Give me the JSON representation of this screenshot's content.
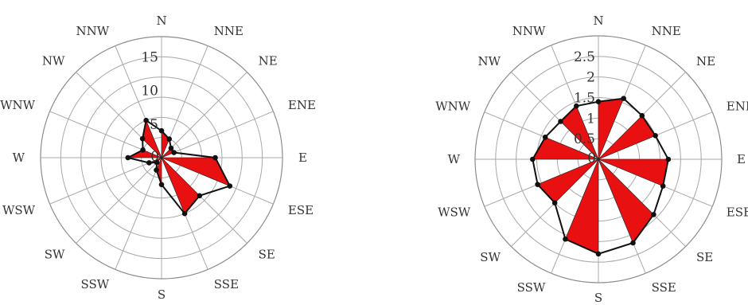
{
  "chart_data": [
    {
      "type": "radar",
      "chart_style": "wind-rose",
      "directions": [
        "N",
        "NNE",
        "NE",
        "ENE",
        "E",
        "ESE",
        "SE",
        "SSE",
        "S",
        "SSW",
        "SW",
        "WSW",
        "W",
        "WNW",
        "NW",
        "NNW"
      ],
      "ticks": [
        0,
        5,
        10,
        15
      ],
      "tick_labels": [
        "0",
        "5",
        "10",
        "15"
      ],
      "rmax": 18,
      "values": [
        4,
        3,
        2,
        2,
        8,
        11,
        8,
        9,
        4,
        2,
        1,
        2,
        5,
        3,
        4,
        6
      ],
      "colors": {
        "petal": "#e81010",
        "outline": "#111111",
        "grid": "#a8a8a8"
      }
    },
    {
      "type": "radar",
      "chart_style": "wind-rose",
      "directions": [
        "N",
        "NNE",
        "NE",
        "ENE",
        "E",
        "ESE",
        "SE",
        "SSE",
        "S",
        "SSW",
        "SW",
        "WSW",
        "W",
        "WNW",
        "NW",
        "NNW"
      ],
      "ticks": [
        0,
        0.5,
        1,
        1.5,
        2,
        2.5
      ],
      "tick_labels": [
        "0",
        "0.5",
        "1",
        "1.5",
        "2",
        "2.5"
      ],
      "rmax": 3,
      "values": [
        1.4,
        1.6,
        1.5,
        1.5,
        1.7,
        1.7,
        1.9,
        2.2,
        2.3,
        2.1,
        1.5,
        1.6,
        1.6,
        1.4,
        1.3,
        1.4
      ],
      "colors": {
        "petal": "#e81010",
        "outline": "#111111",
        "grid": "#a8a8a8"
      }
    }
  ]
}
